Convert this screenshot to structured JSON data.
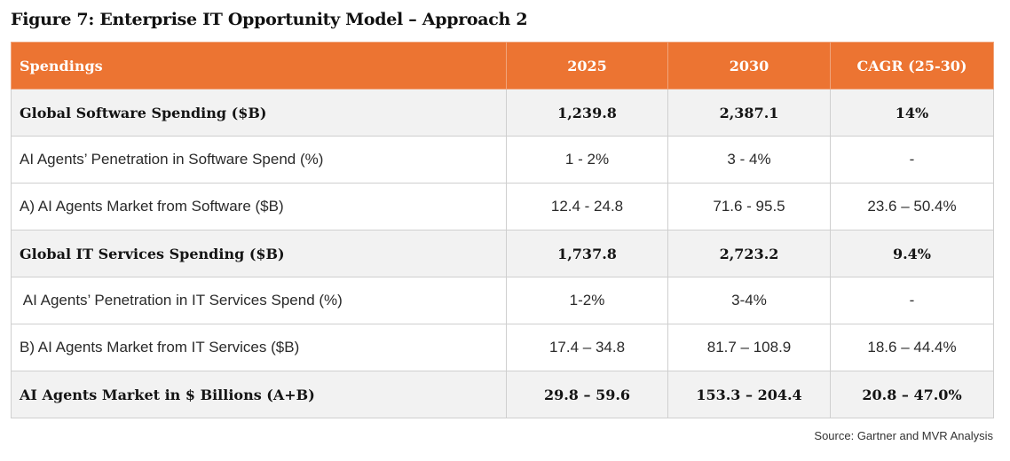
{
  "figure": {
    "title": "Figure 7: Enterprise IT Opportunity Model – Approach 2"
  },
  "table": {
    "headers": [
      "Spendings",
      "2025",
      "2030",
      "CAGR (25-30)"
    ],
    "rows": [
      {
        "label": "Global Software Spending ($B)",
        "y2025": "1,239.8",
        "y2030": "2,387.1",
        "cagr": "14%"
      },
      {
        "label": "AI Agents’ Penetration in Software Spend (%)",
        "y2025": "1 - 2%",
        "y2030": "3 - 4%",
        "cagr": "-"
      },
      {
        "label": "A) AI Agents Market from Software ($B)",
        "y2025": "12.4 - 24.8",
        "y2030": "71.6 - 95.5",
        "cagr": "23.6 – 50.4%"
      },
      {
        "label": "Global IT Services Spending ($B)",
        "y2025": "1,737.8",
        "y2030": "2,723.2",
        "cagr": "9.4%"
      },
      {
        "label": " AI Agents’ Penetration in IT Services Spend (%)",
        "y2025": "1-2%",
        "y2030": "3-4%",
        "cagr": "-"
      },
      {
        "label": "B) AI Agents Market from IT Services ($B)",
        "y2025": "17.4 – 34.8",
        "y2030": "81.7 – 108.9",
        "cagr": "18.6 – 44.4%"
      },
      {
        "label": "AI Agents Market in $ Billions (A+B)",
        "y2025": "29.8 – 59.6",
        "y2030": "153.3 – 204.4",
        "cagr": "20.8 – 47.0%"
      }
    ]
  },
  "source": {
    "text": "Source: Gartner and MVR Analysis"
  },
  "colors": {
    "header_bg": "#ec7432",
    "header_text": "#ffffff",
    "bold_row_bg": "#f2f2f2",
    "border": "#cfcfcf"
  }
}
